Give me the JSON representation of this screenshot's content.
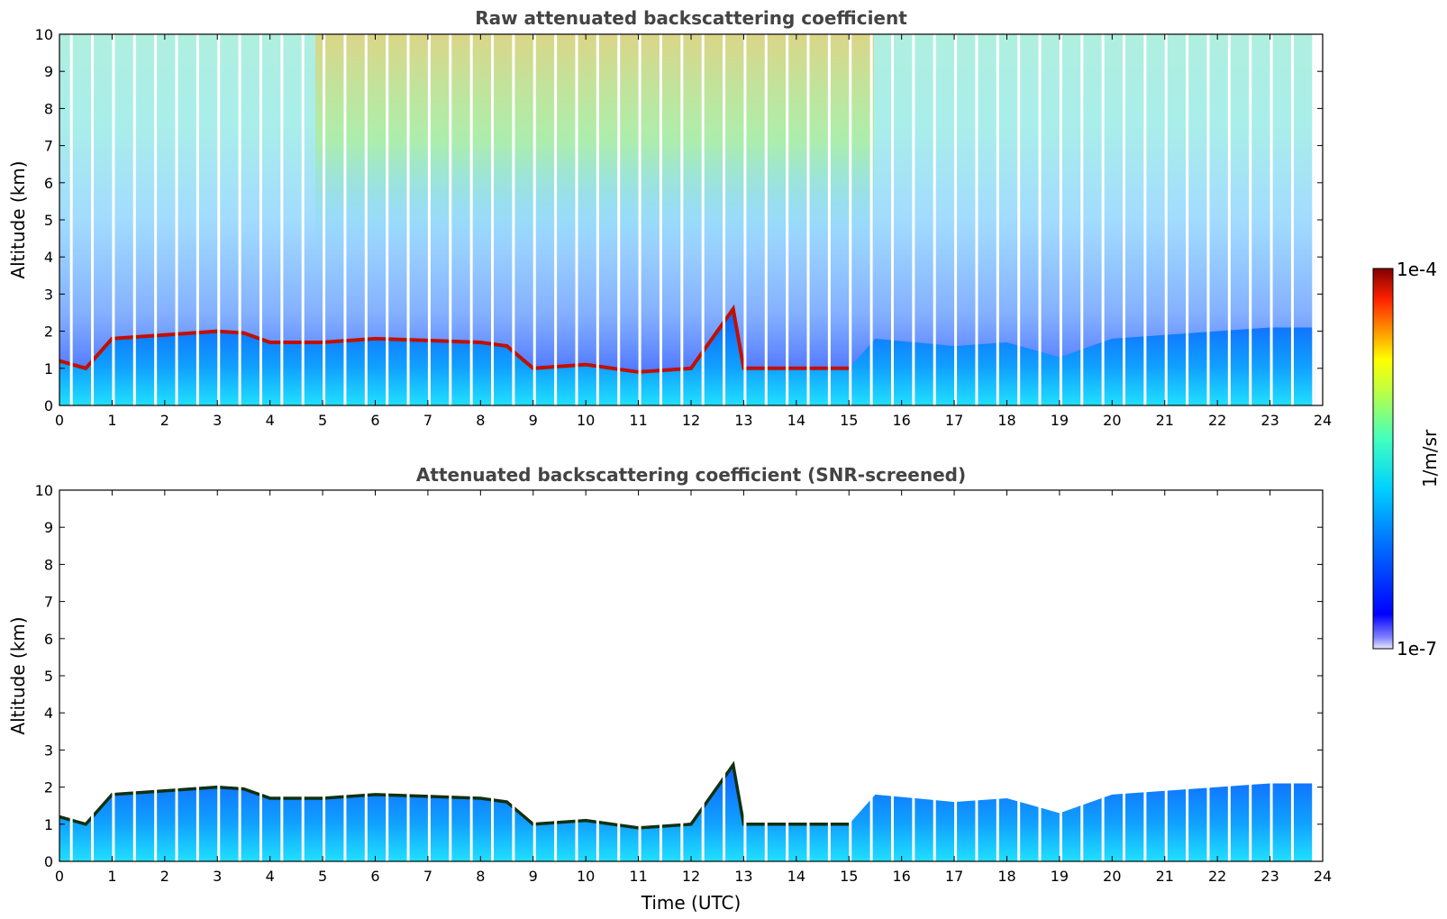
{
  "chart_data": [
    {
      "type": "heatmap",
      "title": "Raw attenuated backscattering coefficient",
      "xlabel": "",
      "ylabel": "Altitude (km)",
      "xlim": [
        0,
        24
      ],
      "ylim": [
        0,
        10
      ],
      "xticks": [
        0,
        1,
        2,
        3,
        4,
        5,
        6,
        7,
        8,
        9,
        10,
        11,
        12,
        13,
        14,
        15,
        16,
        17,
        18,
        19,
        20,
        21,
        22,
        23,
        24
      ],
      "yticks": [
        0,
        1,
        2,
        3,
        4,
        5,
        6,
        7,
        8,
        9,
        10
      ],
      "boundary_layer_top_km": [
        [
          0.0,
          1.2
        ],
        [
          0.5,
          1.0
        ],
        [
          1.0,
          1.8
        ],
        [
          2.0,
          1.9
        ],
        [
          3.0,
          2.0
        ],
        [
          3.5,
          1.95
        ],
        [
          4.0,
          1.7
        ],
        [
          5.0,
          1.7
        ],
        [
          6.0,
          1.8
        ],
        [
          7.0,
          1.75
        ],
        [
          8.0,
          1.7
        ],
        [
          8.5,
          1.6
        ],
        [
          9.0,
          1.0
        ],
        [
          10.0,
          1.1
        ],
        [
          11.0,
          0.9
        ],
        [
          12.0,
          1.0
        ],
        [
          12.8,
          2.6
        ],
        [
          13.0,
          1.0
        ],
        [
          14.0,
          1.0
        ],
        [
          15.0,
          1.0
        ],
        [
          15.5,
          1.8
        ],
        [
          17.0,
          1.6
        ],
        [
          18.0,
          1.7
        ],
        [
          19.0,
          1.3
        ],
        [
          20.0,
          1.8
        ],
        [
          21.0,
          1.9
        ],
        [
          22.0,
          2.0
        ],
        [
          23.0,
          2.1
        ],
        [
          23.8,
          2.1
        ]
      ],
      "grid": false
    },
    {
      "type": "heatmap",
      "title": "Attenuated backscattering coefficient (SNR-screened)",
      "xlabel": "Time (UTC)",
      "ylabel": "Altitude (km)",
      "xlim": [
        0,
        24
      ],
      "ylim": [
        0,
        10
      ],
      "xticks": [
        0,
        1,
        2,
        3,
        4,
        5,
        6,
        7,
        8,
        9,
        10,
        11,
        12,
        13,
        14,
        15,
        16,
        17,
        18,
        19,
        20,
        21,
        22,
        23,
        24
      ],
      "yticks": [
        0,
        1,
        2,
        3,
        4,
        5,
        6,
        7,
        8,
        9,
        10
      ],
      "boundary_layer_top_km": [
        [
          0.0,
          1.2
        ],
        [
          0.5,
          1.0
        ],
        [
          1.0,
          1.8
        ],
        [
          2.0,
          1.9
        ],
        [
          3.0,
          2.0
        ],
        [
          3.5,
          1.95
        ],
        [
          4.0,
          1.7
        ],
        [
          5.0,
          1.7
        ],
        [
          6.0,
          1.8
        ],
        [
          7.0,
          1.75
        ],
        [
          8.0,
          1.7
        ],
        [
          8.5,
          1.6
        ],
        [
          9.0,
          1.0
        ],
        [
          10.0,
          1.1
        ],
        [
          11.0,
          0.9
        ],
        [
          12.0,
          1.0
        ],
        [
          12.8,
          2.6
        ],
        [
          13.0,
          1.0
        ],
        [
          14.0,
          1.0
        ],
        [
          15.0,
          1.0
        ],
        [
          15.5,
          1.8
        ],
        [
          17.0,
          1.6
        ],
        [
          18.0,
          1.7
        ],
        [
          19.0,
          1.3
        ],
        [
          20.0,
          1.8
        ],
        [
          21.0,
          1.9
        ],
        [
          22.0,
          2.0
        ],
        [
          23.0,
          2.1
        ],
        [
          23.8,
          2.1
        ]
      ],
      "grid": false
    }
  ],
  "colorbar": {
    "max_label": "1e-4",
    "min_label": "1e-7",
    "unit_label": "1/m/sr",
    "colormap": "jet",
    "scale": "log",
    "range": [
      1e-07,
      0.0001
    ]
  }
}
